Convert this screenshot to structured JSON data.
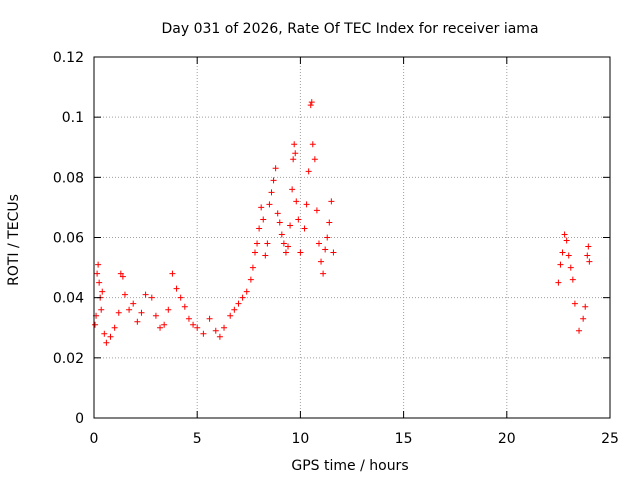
{
  "chart_data": {
    "type": "scatter",
    "title": "Day 031 of 2026, Rate Of TEC Index for receiver iama",
    "xlabel": "GPS time / hours",
    "ylabel": "ROTI / TECUs",
    "xlim": [
      0,
      25
    ],
    "ylim": [
      0,
      0.12
    ],
    "xticks": [
      0,
      5,
      10,
      15,
      20,
      25
    ],
    "xtick_labels": [
      "0",
      "5",
      "10",
      "15",
      "20",
      "25"
    ],
    "yticks": [
      0,
      0.02,
      0.04,
      0.06,
      0.08,
      0.1,
      0.12
    ],
    "ytick_labels": [
      "0",
      "0.02",
      "0.04",
      "0.06",
      "0.08",
      "0.1",
      "0.12"
    ],
    "grid": true,
    "marker": "plus",
    "color": "#ff0000",
    "series": [
      {
        "points": [
          [
            0.05,
            0.031
          ],
          [
            0.1,
            0.034
          ],
          [
            0.15,
            0.048
          ],
          [
            0.2,
            0.051
          ],
          [
            0.25,
            0.045
          ],
          [
            0.3,
            0.04
          ],
          [
            0.35,
            0.036
          ],
          [
            0.4,
            0.042
          ],
          [
            0.5,
            0.028
          ],
          [
            0.6,
            0.025
          ],
          [
            0.8,
            0.027
          ],
          [
            1.0,
            0.03
          ],
          [
            1.2,
            0.035
          ],
          [
            1.3,
            0.048
          ],
          [
            1.4,
            0.047
          ],
          [
            1.5,
            0.041
          ],
          [
            1.7,
            0.036
          ],
          [
            1.9,
            0.038
          ],
          [
            2.1,
            0.032
          ],
          [
            2.3,
            0.035
          ],
          [
            2.5,
            0.041
          ],
          [
            2.8,
            0.04
          ],
          [
            3.0,
            0.034
          ],
          [
            3.2,
            0.03
          ],
          [
            3.4,
            0.031
          ],
          [
            3.6,
            0.036
          ],
          [
            3.8,
            0.048
          ],
          [
            4.0,
            0.043
          ],
          [
            4.2,
            0.04
          ],
          [
            4.4,
            0.037
          ],
          [
            4.6,
            0.033
          ],
          [
            4.8,
            0.031
          ],
          [
            5.0,
            0.03
          ],
          [
            5.3,
            0.028
          ],
          [
            5.6,
            0.033
          ],
          [
            5.9,
            0.029
          ],
          [
            6.1,
            0.027
          ],
          [
            6.3,
            0.03
          ],
          [
            6.6,
            0.034
          ],
          [
            6.8,
            0.036
          ],
          [
            7.0,
            0.038
          ],
          [
            7.2,
            0.04
          ],
          [
            7.4,
            0.042
          ],
          [
            7.6,
            0.046
          ],
          [
            7.7,
            0.05
          ],
          [
            7.8,
            0.055
          ],
          [
            7.9,
            0.058
          ],
          [
            8.0,
            0.063
          ],
          [
            8.1,
            0.07
          ],
          [
            8.2,
            0.066
          ],
          [
            8.3,
            0.054
          ],
          [
            8.4,
            0.058
          ],
          [
            8.5,
            0.071
          ],
          [
            8.6,
            0.075
          ],
          [
            8.7,
            0.079
          ],
          [
            8.8,
            0.083
          ],
          [
            8.9,
            0.068
          ],
          [
            9.0,
            0.065
          ],
          [
            9.1,
            0.061
          ],
          [
            9.2,
            0.058
          ],
          [
            9.3,
            0.055
          ],
          [
            9.4,
            0.057
          ],
          [
            9.5,
            0.064
          ],
          [
            9.6,
            0.076
          ],
          [
            9.65,
            0.086
          ],
          [
            9.7,
            0.091
          ],
          [
            9.75,
            0.088
          ],
          [
            9.8,
            0.072
          ],
          [
            9.9,
            0.066
          ],
          [
            10.0,
            0.055
          ],
          [
            10.2,
            0.063
          ],
          [
            10.3,
            0.071
          ],
          [
            10.4,
            0.082
          ],
          [
            10.5,
            0.104
          ],
          [
            10.55,
            0.105
          ],
          [
            10.6,
            0.091
          ],
          [
            10.7,
            0.086
          ],
          [
            10.8,
            0.069
          ],
          [
            10.9,
            0.058
          ],
          [
            11.0,
            0.052
          ],
          [
            11.1,
            0.048
          ],
          [
            11.2,
            0.056
          ],
          [
            11.3,
            0.06
          ],
          [
            11.4,
            0.065
          ],
          [
            11.5,
            0.072
          ],
          [
            11.6,
            0.055
          ],
          [
            22.5,
            0.045
          ],
          [
            22.6,
            0.051
          ],
          [
            22.7,
            0.055
          ],
          [
            22.8,
            0.061
          ],
          [
            22.9,
            0.059
          ],
          [
            23.0,
            0.054
          ],
          [
            23.1,
            0.05
          ],
          [
            23.2,
            0.046
          ],
          [
            23.3,
            0.038
          ],
          [
            23.5,
            0.029
          ],
          [
            23.7,
            0.033
          ],
          [
            23.8,
            0.037
          ],
          [
            23.9,
            0.054
          ],
          [
            23.95,
            0.057
          ],
          [
            24.0,
            0.052
          ]
        ]
      }
    ]
  }
}
